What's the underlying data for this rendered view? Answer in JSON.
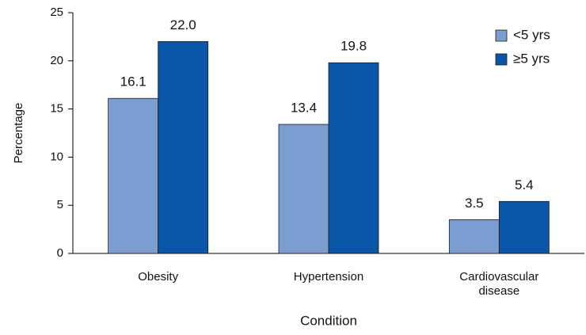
{
  "chart_data": {
    "type": "bar",
    "x_label": "Condition",
    "y_label": "Percentage",
    "categories": [
      "Obesity",
      "Hypertension",
      "Cardiovascular disease"
    ],
    "series": [
      {
        "name": "<5 yrs",
        "color": "#7c9dd0",
        "values": [
          16.1,
          13.4,
          3.5
        ],
        "value_labels": [
          "16.1",
          "13.4",
          "3.5"
        ]
      },
      {
        "name": "≥5 yrs",
        "color": "#0a56a8",
        "values": [
          22.0,
          19.8,
          5.4
        ],
        "value_labels": [
          "22.0",
          "19.8",
          "5.4"
        ]
      }
    ],
    "ylim": [
      0,
      25
    ],
    "yticks": [
      0,
      5,
      10,
      15,
      20,
      25
    ],
    "grid": false,
    "legend": "upper right"
  }
}
